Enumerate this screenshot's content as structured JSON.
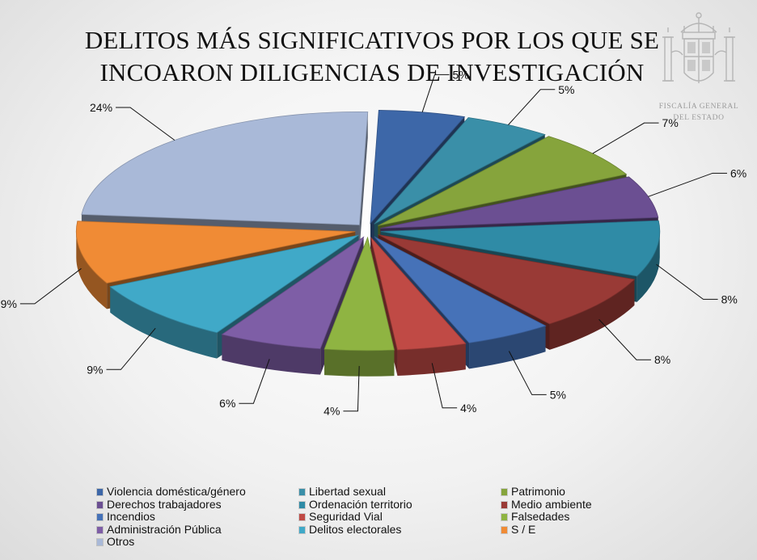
{
  "title_lines": [
    "DELITOS MÁS SIGNIFICATIVOS POR LOS QUE SE",
    "INCOARON DILIGENCIAS DE INVESTIGACIÓN"
  ],
  "emblem": {
    "line1": "FISCALÍA GENERAL",
    "line2": "DEL ESTADO"
  },
  "chart_data": {
    "type": "pie",
    "title": "DELITOS MÁS SIGNIFICATIVOS POR LOS QUE SE INCOARON DILIGENCIAS DE INVESTIGACIÓN",
    "legend_position": "bottom",
    "categories": [
      "Violencia doméstica/género",
      "Libertad sexual",
      "Patrimonio",
      "Derechos trabajadores",
      "Ordenación territorio",
      "Medio ambiente",
      "Incendios",
      "Seguridad Vial",
      "Falsedades",
      "Administración Pública",
      "Delitos electorales",
      "S / E",
      "Otros"
    ],
    "values": [
      5,
      5,
      7,
      6,
      8,
      8,
      5,
      4,
      4,
      6,
      9,
      9,
      24
    ],
    "labels": [
      "5%",
      "5%",
      "7%",
      "6%",
      "8%",
      "8%",
      "5%",
      "4%",
      "4%",
      "6%",
      "9%",
      "9%",
      "24%"
    ],
    "colors": [
      "#3d67a8",
      "#3a8fa8",
      "#86a43c",
      "#6b4f92",
      "#2f8ba6",
      "#993a36",
      "#4672b8",
      "#c04a45",
      "#8fb442",
      "#7e5ea6",
      "#40a9c8",
      "#f08b35",
      "#a9b9d8"
    ]
  }
}
